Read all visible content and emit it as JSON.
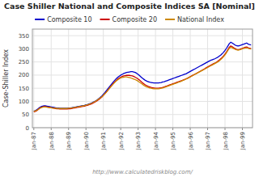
{
  "chart_data": {
    "type": "line",
    "title": "Case Shiller National and Composite Indices SA [Nominal]",
    "y_label": "Case-Shiller Index",
    "annotations": [
      "http://www.calculatedriskblog.com/"
    ],
    "categories": [
      "Jan-87",
      null,
      null,
      null,
      null,
      null,
      null,
      null,
      null,
      null,
      null,
      null,
      "Jan-88",
      null,
      null,
      null,
      null,
      null,
      null,
      null,
      null,
      null,
      null,
      null,
      "Jan-89",
      null,
      null,
      null,
      null,
      null,
      null,
      null,
      null,
      null,
      null,
      null,
      "Jan-90",
      null,
      null,
      null,
      null,
      null,
      null,
      null,
      null,
      null,
      null,
      null,
      "Jan-91",
      null,
      null,
      null,
      null,
      null,
      null,
      null,
      null,
      null,
      null,
      null,
      "Jan-92",
      null,
      null,
      null,
      null,
      null,
      null,
      null,
      null,
      null,
      null,
      null,
      "Jan-93",
      null,
      null,
      null,
      null,
      null,
      null,
      null,
      null,
      null,
      null,
      null,
      "Jan-94",
      null,
      null,
      null,
      null,
      null,
      null,
      null,
      null,
      null,
      null,
      null,
      "Jan-95",
      null,
      null,
      null,
      null,
      null,
      null,
      null,
      null,
      null,
      null,
      null,
      "Jan-96",
      null,
      null,
      null,
      null,
      null,
      null,
      null,
      null,
      null,
      null,
      null,
      "Jan-97",
      null,
      null,
      null,
      null,
      null,
      null,
      null,
      null,
      null,
      null,
      null,
      "Jan-98",
      null,
      null,
      null,
      null,
      null,
      null,
      null,
      null,
      null,
      null,
      null,
      "Jan-99",
      null,
      null,
      null,
      null,
      null,
      null
    ],
    "series": [
      {
        "name": "Composite 10",
        "color": "#0000cc",
        "values": [
          63,
          65,
          68,
          72,
          77,
          80,
          82,
          83,
          83,
          82,
          81,
          80,
          79,
          78,
          77,
          76,
          75,
          75,
          74,
          74,
          74,
          74,
          74,
          74,
          75,
          75,
          76,
          77,
          78,
          79,
          80,
          81,
          82,
          83,
          84,
          85,
          87,
          88,
          90,
          92,
          94,
          97,
          100,
          103,
          107,
          111,
          116,
          121,
          127,
          133,
          140,
          147,
          154,
          161,
          168,
          175,
          181,
          187,
          192,
          196,
          200,
          203,
          206,
          208,
          210,
          211,
          212,
          213,
          213,
          212,
          210,
          207,
          203,
          198,
          193,
          188,
          184,
          180,
          177,
          175,
          173,
          172,
          171,
          170,
          170,
          170,
          170,
          171,
          172,
          174,
          175,
          177,
          179,
          181,
          183,
          185,
          187,
          189,
          191,
          193,
          195,
          197,
          199,
          201,
          203,
          205,
          208,
          211,
          214,
          217,
          220,
          223,
          226,
          229,
          232,
          235,
          238,
          241,
          244,
          247,
          250,
          253,
          256,
          258,
          260,
          262,
          265,
          268,
          272,
          276,
          281,
          287,
          294,
          302,
          311,
          320,
          325,
          322,
          318,
          314,
          312,
          311,
          312,
          314,
          316,
          318,
          320,
          322,
          318,
          316,
          315
        ]
      },
      {
        "name": "Composite 20",
        "color": "#cc0000",
        "values": [
          60,
          62,
          65,
          69,
          74,
          77,
          79,
          80,
          80,
          79,
          78,
          77,
          76,
          75,
          74,
          73,
          72,
          72,
          71,
          71,
          71,
          71,
          71,
          71,
          72,
          72,
          73,
          74,
          75,
          76,
          77,
          78,
          79,
          80,
          81,
          82,
          84,
          85,
          87,
          89,
          91,
          94,
          97,
          100,
          104,
          108,
          112,
          117,
          123,
          129,
          135,
          142,
          149,
          156,
          162,
          169,
          175,
          180,
          185,
          189,
          192,
          195,
          197,
          198,
          199,
          199,
          199,
          198,
          197,
          195,
          192,
          189,
          185,
          181,
          176,
          171,
          167,
          163,
          160,
          157,
          155,
          153,
          152,
          151,
          150,
          150,
          150,
          151,
          152,
          153,
          155,
          157,
          159,
          161,
          163,
          165,
          167,
          169,
          171,
          173,
          175,
          177,
          179,
          181,
          183,
          186,
          188,
          191,
          194,
          197,
          200,
          203,
          206,
          209,
          212,
          215,
          218,
          221,
          224,
          228,
          231,
          234,
          237,
          240,
          243,
          246,
          249,
          253,
          257,
          262,
          267,
          273,
          280,
          288,
          297,
          306,
          311,
          308,
          304,
          301,
          298,
          297,
          298,
          300,
          302,
          304,
          306,
          307,
          304,
          302,
          301
        ]
      },
      {
        "name": "National Index",
        "color": "#cc8800",
        "values": [
          62,
          64,
          66,
          69,
          73,
          76,
          78,
          79,
          79,
          78,
          77,
          76,
          76,
          75,
          74,
          74,
          73,
          73,
          73,
          73,
          73,
          73,
          73,
          73,
          74,
          74,
          75,
          76,
          77,
          78,
          79,
          80,
          81,
          82,
          83,
          84,
          86,
          87,
          89,
          91,
          93,
          96,
          99,
          102,
          106,
          110,
          114,
          118,
          123,
          129,
          135,
          141,
          148,
          155,
          161,
          167,
          173,
          178,
          182,
          186,
          189,
          191,
          192,
          193,
          193,
          192,
          191,
          189,
          187,
          185,
          183,
          180,
          177,
          173,
          169,
          165,
          161,
          158,
          155,
          153,
          151,
          150,
          149,
          148,
          148,
          148,
          148,
          149,
          150,
          151,
          153,
          155,
          157,
          159,
          161,
          163,
          165,
          167,
          169,
          171,
          173,
          175,
          177,
          180,
          182,
          185,
          187,
          190,
          193,
          196,
          199,
          202,
          205,
          208,
          211,
          214,
          217,
          220,
          223,
          226,
          229,
          232,
          235,
          238,
          241,
          244,
          247,
          250,
          254,
          259,
          264,
          270,
          277,
          285,
          294,
          302,
          306,
          304,
          301,
          298,
          296,
          295,
          296,
          298,
          300,
          302,
          303,
          304,
          302,
          300,
          299
        ]
      }
    ],
    "ylim": [
      0,
      375
    ],
    "yticks": [
      0,
      50,
      100,
      150,
      200,
      250,
      300,
      350
    ],
    "grid": true,
    "legend": "top"
  }
}
